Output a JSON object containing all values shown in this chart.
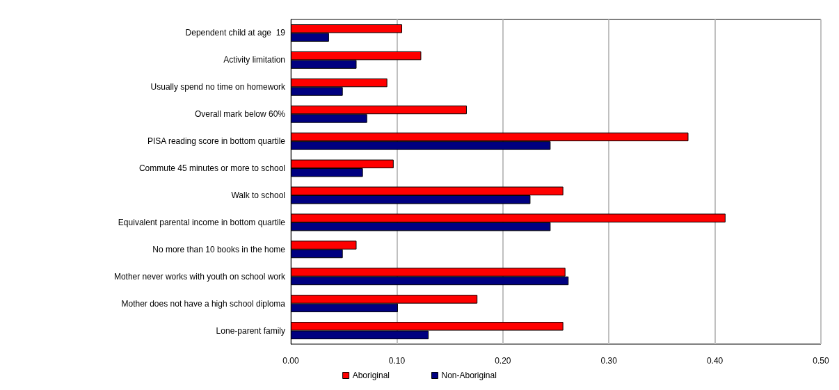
{
  "chart_data": {
    "type": "bar",
    "orientation": "horizontal",
    "categories": [
      "Dependent child at age  19",
      "Activity limitation",
      "Usually spend no time on homework",
      "Overall mark below 60%",
      "PISA reading score in bottom quartile",
      "Commute 45 minutes or more to school",
      "Walk to school",
      "Equivalent parental income in bottom quartile",
      "No more than 10 books in the home",
      "Mother never works with youth on school work",
      "Mother does not have a high school diploma",
      "Lone-parent family"
    ],
    "series": [
      {
        "name": "Aboriginal",
        "color": "#ff0000",
        "values": [
          0.105,
          0.123,
          0.091,
          0.166,
          0.375,
          0.097,
          0.257,
          0.41,
          0.062,
          0.259,
          0.176,
          0.257
        ]
      },
      {
        "name": "Non-Aboriginal",
        "color": "#000080",
        "values": [
          0.036,
          0.062,
          0.049,
          0.072,
          0.245,
          0.068,
          0.226,
          0.245,
          0.049,
          0.262,
          0.101,
          0.13
        ]
      }
    ],
    "xlim": [
      0,
      0.5
    ],
    "xticks": [
      {
        "value": 0,
        "label": "0.00"
      },
      {
        "value": 0.1,
        "label": "0.10"
      },
      {
        "value": 0.2,
        "label": "0.20"
      },
      {
        "value": 0.3,
        "label": "0.30"
      },
      {
        "value": 0.4,
        "label": "0.40"
      },
      {
        "value": 0.5,
        "label": "0.50"
      }
    ],
    "grid": "x",
    "legend": "bottom"
  }
}
